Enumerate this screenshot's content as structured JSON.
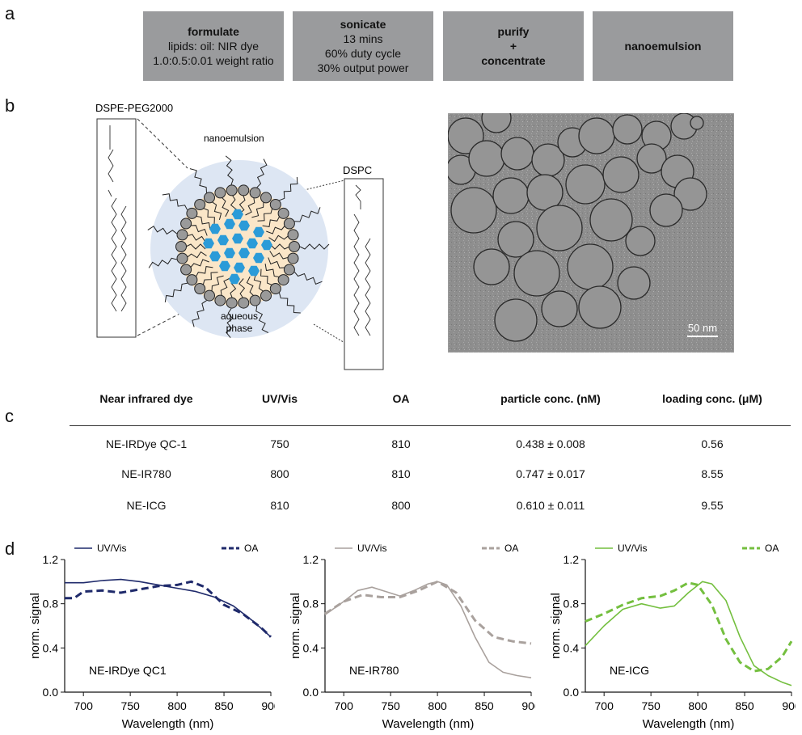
{
  "labels": {
    "a": "a",
    "b": "b",
    "c": "c",
    "d": "d"
  },
  "steps": [
    {
      "title": "formulate",
      "lines": [
        "lipids: oil: NIR dye",
        "1.0:0.5:0.01 weight ratio"
      ]
    },
    {
      "title": "sonicate",
      "lines": [
        "13 mins",
        "60% duty cycle",
        "30% output power"
      ]
    },
    {
      "title": "purify\n+\nconcentrate",
      "lines": []
    },
    {
      "title": "nanoemulsion",
      "lines": []
    }
  ],
  "schematic": {
    "dspe_label": "DSPE-PEG2000",
    "dspc_label": "DSPC",
    "nano_label": "nanoemulsion",
    "aqueous_label_1": "aqueous",
    "aqueous_label_2": "phase"
  },
  "micrograph": {
    "scale_label": "50 nm"
  },
  "table": {
    "headers": [
      "Near infrared dye",
      "UV/Vis",
      "OA",
      "particle conc. (nM)",
      "loading conc. (μM)"
    ],
    "rows": [
      [
        "NE-IRDye QC-1",
        "750",
        "810",
        "0.438 ± 0.008",
        "0.56"
      ],
      [
        "NE-IR780",
        "800",
        "810",
        "0.747 ± 0.017",
        "8.55"
      ],
      [
        "NE-ICG",
        "810",
        "800",
        "0.610 ± 0.011",
        "9.55"
      ]
    ]
  },
  "chart_data": [
    {
      "type": "line",
      "title": "NE-IRDye QC1",
      "xlabel": "Wavelength (nm)",
      "ylabel": "norm. signal",
      "xlim": [
        680,
        900
      ],
      "ylim": [
        0,
        1.2
      ],
      "xticks": [
        700,
        750,
        800,
        850,
        900
      ],
      "yticks": [
        0.0,
        0.4,
        0.8,
        1.2
      ],
      "color": "#1f2a6b",
      "series": [
        {
          "name": "UV/Vis",
          "style": "solid",
          "x": [
            680,
            700,
            720,
            740,
            760,
            780,
            800,
            820,
            840,
            860,
            880,
            900
          ],
          "y": [
            0.99,
            0.99,
            1.01,
            1.02,
            1.0,
            0.97,
            0.94,
            0.91,
            0.86,
            0.78,
            0.65,
            0.5
          ]
        },
        {
          "name": "OA",
          "style": "dashed",
          "x": [
            680,
            690,
            700,
            720,
            740,
            760,
            780,
            800,
            815,
            830,
            850,
            870,
            890,
            900
          ],
          "y": [
            0.85,
            0.85,
            0.91,
            0.92,
            0.9,
            0.93,
            0.96,
            0.97,
            1.0,
            0.95,
            0.79,
            0.71,
            0.58,
            0.5
          ]
        }
      ]
    },
    {
      "type": "line",
      "title": "NE-IR780",
      "xlabel": "Wavelength (nm)",
      "ylabel": "norm. signal",
      "xlim": [
        680,
        900
      ],
      "ylim": [
        0,
        1.2
      ],
      "xticks": [
        700,
        750,
        800,
        850,
        900
      ],
      "yticks": [
        0.0,
        0.4,
        0.8,
        1.2
      ],
      "color": "#a9a19d",
      "series": [
        {
          "name": "UV/Vis",
          "style": "solid",
          "x": [
            680,
            700,
            715,
            730,
            745,
            760,
            775,
            790,
            800,
            810,
            825,
            840,
            855,
            870,
            885,
            900
          ],
          "y": [
            0.7,
            0.82,
            0.92,
            0.95,
            0.91,
            0.87,
            0.92,
            0.98,
            1.0,
            0.97,
            0.78,
            0.5,
            0.27,
            0.18,
            0.15,
            0.13
          ]
        },
        {
          "name": "OA",
          "style": "dashed",
          "x": [
            680,
            700,
            720,
            740,
            760,
            780,
            800,
            820,
            840,
            860,
            880,
            900
          ],
          "y": [
            0.71,
            0.82,
            0.88,
            0.86,
            0.86,
            0.92,
            1.0,
            0.9,
            0.65,
            0.5,
            0.46,
            0.44
          ]
        }
      ]
    },
    {
      "type": "line",
      "title": "NE-ICG",
      "xlabel": "Wavelength (nm)",
      "ylabel": "norm. signal",
      "xlim": [
        680,
        900
      ],
      "ylim": [
        0,
        1.2
      ],
      "xticks": [
        700,
        750,
        800,
        850,
        900
      ],
      "yticks": [
        0.0,
        0.4,
        0.8,
        1.2
      ],
      "color": "#74bf3f",
      "series": [
        {
          "name": "UV/Vis",
          "style": "solid",
          "x": [
            680,
            700,
            720,
            740,
            760,
            775,
            790,
            805,
            815,
            830,
            845,
            860,
            875,
            890,
            900
          ],
          "y": [
            0.42,
            0.6,
            0.75,
            0.8,
            0.76,
            0.78,
            0.9,
            1.0,
            0.98,
            0.83,
            0.5,
            0.24,
            0.15,
            0.09,
            0.06
          ]
        },
        {
          "name": "OA",
          "style": "dashed",
          "x": [
            680,
            700,
            720,
            740,
            760,
            775,
            790,
            800,
            815,
            830,
            845,
            860,
            875,
            890,
            900
          ],
          "y": [
            0.64,
            0.71,
            0.79,
            0.85,
            0.87,
            0.92,
            0.99,
            0.97,
            0.79,
            0.48,
            0.27,
            0.19,
            0.21,
            0.32,
            0.46
          ]
        }
      ]
    }
  ]
}
